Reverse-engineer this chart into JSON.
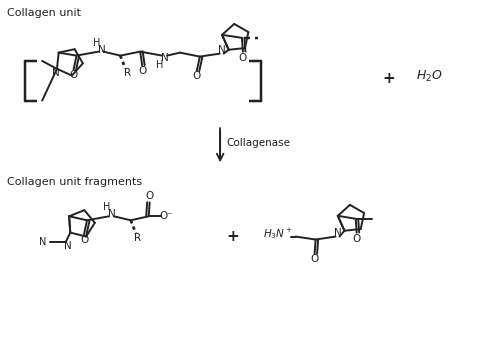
{
  "bg_color": "#ffffff",
  "line_color": "#222222",
  "lw": 1.4,
  "title_top": "Collagen unit",
  "title_bottom": "Collagen unit fragments",
  "enzyme_label": "Collagenase"
}
